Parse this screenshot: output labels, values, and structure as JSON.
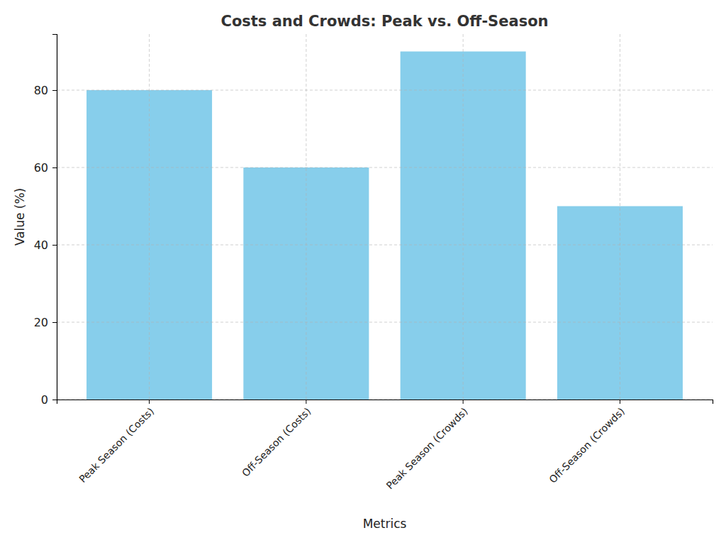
{
  "chart_data": {
    "type": "bar",
    "title": "Costs and Crowds: Peak vs. Off-Season",
    "x_label": "Metrics",
    "y_label": "Value (%)",
    "categories": [
      "Peak Season (Costs)",
      "Off-Season (Costs)",
      "Peak Season (Crowds)",
      "Off-Season (Crowds)"
    ],
    "values": [
      80,
      60,
      90,
      50
    ],
    "color": "#87ceeb",
    "ylim": [
      0,
      94.5
    ],
    "yticks": [
      0,
      20,
      40,
      60,
      80
    ],
    "grid": true
  }
}
